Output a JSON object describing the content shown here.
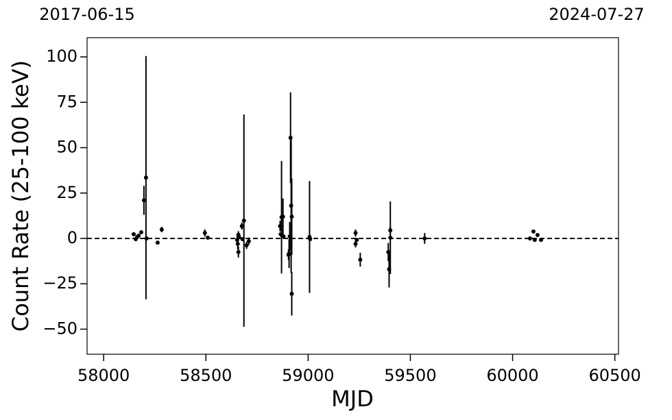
{
  "chart_data": {
    "type": "errorbar",
    "xlabel": "MJD",
    "ylabel": "Count Rate (25-100 keV)",
    "xlim": [
      57919,
      60518
    ],
    "ylim": [
      -63.8,
      110.6
    ],
    "xticks": [
      58000,
      58500,
      59000,
      59500,
      60000,
      60500
    ],
    "yticks": [
      {
        "value": -50,
        "label": "−50"
      },
      {
        "value": -25,
        "label": "−25"
      },
      0,
      25,
      50,
      75,
      100
    ],
    "x2ticks": [
      {
        "value": 57919,
        "label": "2017-06-15"
      },
      {
        "value": 60518,
        "label": "2024-07-27"
      }
    ],
    "hline": 0,
    "color": "#000000",
    "x": [
      58147,
      58157,
      58164,
      58171,
      58184,
      58197,
      58207,
      58210,
      58264,
      58284,
      58495,
      58509,
      58653,
      58656,
      58659,
      58659,
      58662,
      58676,
      58679,
      58686,
      58699,
      58710,
      58863,
      58866,
      58870,
      58873,
      58877,
      58880,
      58904,
      58907,
      58910,
      58914,
      58917,
      58920,
      58920,
      59007,
      59010,
      59232,
      59232,
      59238,
      59255,
      59392,
      59396,
      59402,
      59402,
      59570,
      60085,
      60102,
      60108,
      60122,
      60139
    ],
    "values": [
      2.3,
      -0.4,
      0.8,
      1.5,
      3.4,
      21,
      33.5,
      0,
      -2.3,
      4.9,
      3,
      0.4,
      -0.8,
      -3,
      -7.5,
      2,
      0.8,
      6.8,
      -0.4,
      9.8,
      -3.8,
      -1.5,
      6.8,
      2.3,
      11.7,
      1.5,
      12,
      1.1,
      -9,
      -8.3,
      1.1,
      55.5,
      18,
      12,
      -30.5,
      0.8,
      -0.4,
      3,
      -3,
      -0.8,
      -11.7,
      -7.5,
      -17,
      4.5,
      0.4,
      0,
      0,
      3.8,
      -0.8,
      1.9,
      -0.8
    ],
    "errors": [
      1,
      1,
      1,
      1,
      1,
      8,
      67,
      1,
      1,
      1.5,
      2,
      1,
      3,
      3,
      3,
      2,
      1,
      2,
      1,
      58.5,
      2,
      2,
      3,
      1,
      31,
      1,
      10,
      1,
      3,
      8,
      8,
      25,
      37,
      21,
      12,
      30.8,
      1,
      2,
      2,
      1,
      3.8,
      5,
      10,
      2,
      20,
      3,
      1,
      1,
      1,
      1,
      1
    ]
  }
}
